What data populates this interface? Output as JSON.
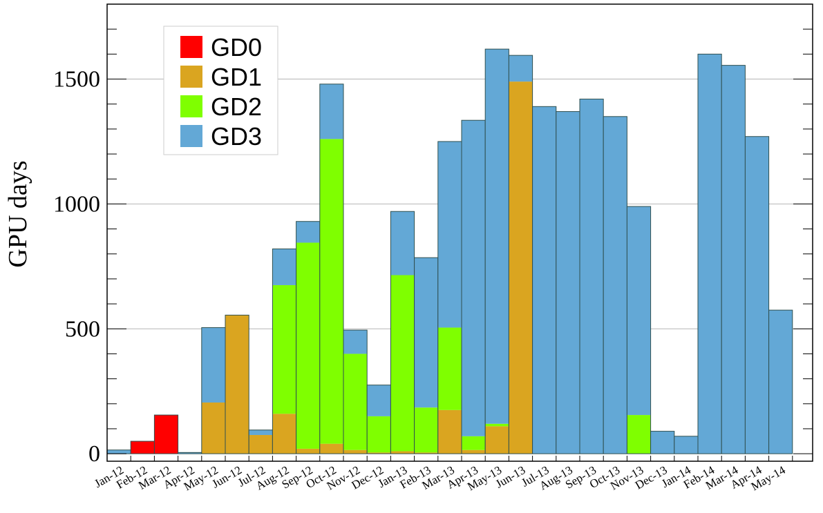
{
  "chart_data": {
    "type": "bar",
    "stacked": true,
    "ylabel": "GPU days",
    "xlabel": "",
    "ylim": [
      -30,
      1800
    ],
    "yticks": [
      0,
      500,
      1000,
      1500
    ],
    "grid": "horizontal",
    "legend_position": "top-left",
    "categories": [
      "Jan-12",
      "Feb-12",
      "Mar-12",
      "Apr-12",
      "May-12",
      "Jun-12",
      "Jul-12",
      "Aug-12",
      "Sep-12",
      "Oct-12",
      "Nov-12",
      "Dec-12",
      "Jan-13",
      "Feb-13",
      "Mar-13",
      "Apr-13",
      "May-13",
      "Jun-13",
      "Jul-13",
      "Aug-13",
      "Sep-13",
      "Oct-13",
      "Nov-13",
      "Dec-13",
      "Jan-14",
      "Feb-14",
      "Mar-14",
      "Apr-14",
      "May-14"
    ],
    "series": [
      {
        "name": "GD0",
        "color": "#ff0000",
        "values": [
          0,
          50,
          155,
          0,
          0,
          0,
          0,
          0,
          0,
          0,
          0,
          0,
          0,
          0,
          0,
          0,
          0,
          0,
          0,
          0,
          0,
          0,
          0,
          0,
          0,
          0,
          0,
          0,
          0
        ]
      },
      {
        "name": "GD1",
        "color": "#daa520",
        "values": [
          0,
          0,
          0,
          0,
          205,
          555,
          75,
          160,
          20,
          40,
          15,
          5,
          10,
          5,
          175,
          15,
          110,
          1490,
          0,
          0,
          0,
          0,
          0,
          0,
          0,
          0,
          0,
          0,
          0
        ]
      },
      {
        "name": "GD2",
        "color": "#7fff00",
        "values": [
          0,
          0,
          0,
          0,
          0,
          0,
          0,
          515,
          825,
          1220,
          385,
          145,
          705,
          180,
          330,
          55,
          10,
          0,
          0,
          0,
          0,
          0,
          155,
          0,
          0,
          0,
          0,
          0,
          0
        ]
      },
      {
        "name": "GD3",
        "color": "#63a8d6",
        "values": [
          15,
          0,
          0,
          5,
          300,
          0,
          20,
          145,
          85,
          220,
          95,
          125,
          255,
          600,
          745,
          1265,
          1500,
          105,
          1390,
          1370,
          1420,
          1350,
          835,
          90,
          70,
          1600,
          1555,
          1270,
          575
        ]
      }
    ]
  }
}
